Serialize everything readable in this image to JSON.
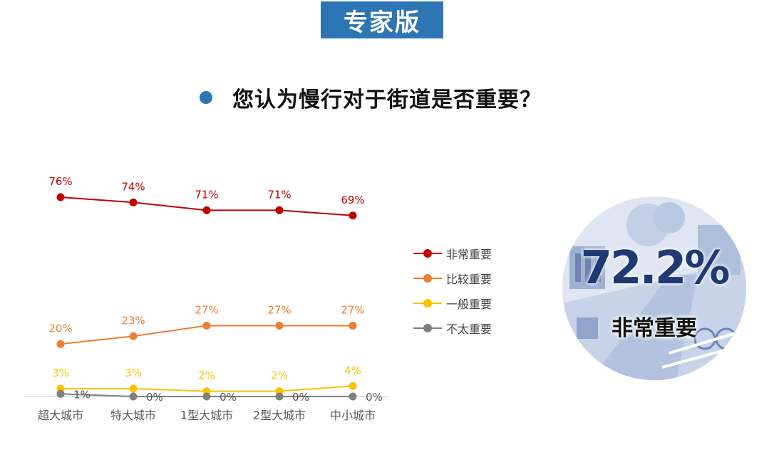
{
  "header": {
    "badge": "专家版"
  },
  "question": "您认为慢行对于街道是否重要？",
  "highlight": {
    "value": "72.2%",
    "label": "非常重要"
  },
  "colors": {
    "accent": "#2e75b6",
    "very_important": "#c00000",
    "relatively_important": "#ed7d31",
    "normal_important": "#ffc000",
    "not_important": "#7f7f7f"
  },
  "chart_data": {
    "type": "line",
    "categories": [
      "超大城市",
      "特大城市",
      "1型大城市",
      "2型大城市",
      "中小城市"
    ],
    "series": [
      {
        "name": "非常重要",
        "color": "#c00000",
        "values": [
          76,
          74,
          71,
          71,
          69
        ],
        "labels": [
          "76%",
          "74%",
          "71%",
          "71%",
          "69%"
        ]
      },
      {
        "name": "比较重要",
        "color": "#ed7d31",
        "values": [
          20,
          23,
          27,
          27,
          27
        ],
        "labels": [
          "20%",
          "23%",
          "27%",
          "27%",
          "27%"
        ]
      },
      {
        "name": "一般重要",
        "color": "#ffc000",
        "values": [
          3,
          3,
          2,
          2,
          4
        ],
        "labels": [
          "3%",
          "3%",
          "2%",
          "2%",
          "4%"
        ]
      },
      {
        "name": "不太重要",
        "color": "#7f7f7f",
        "values": [
          1,
          0,
          0,
          0,
          0
        ],
        "labels": [
          "1%",
          "0%",
          "0%",
          "0%",
          "0%"
        ]
      }
    ],
    "ylim": [
      0,
      80
    ],
    "grid": false,
    "legend_position": "right"
  }
}
